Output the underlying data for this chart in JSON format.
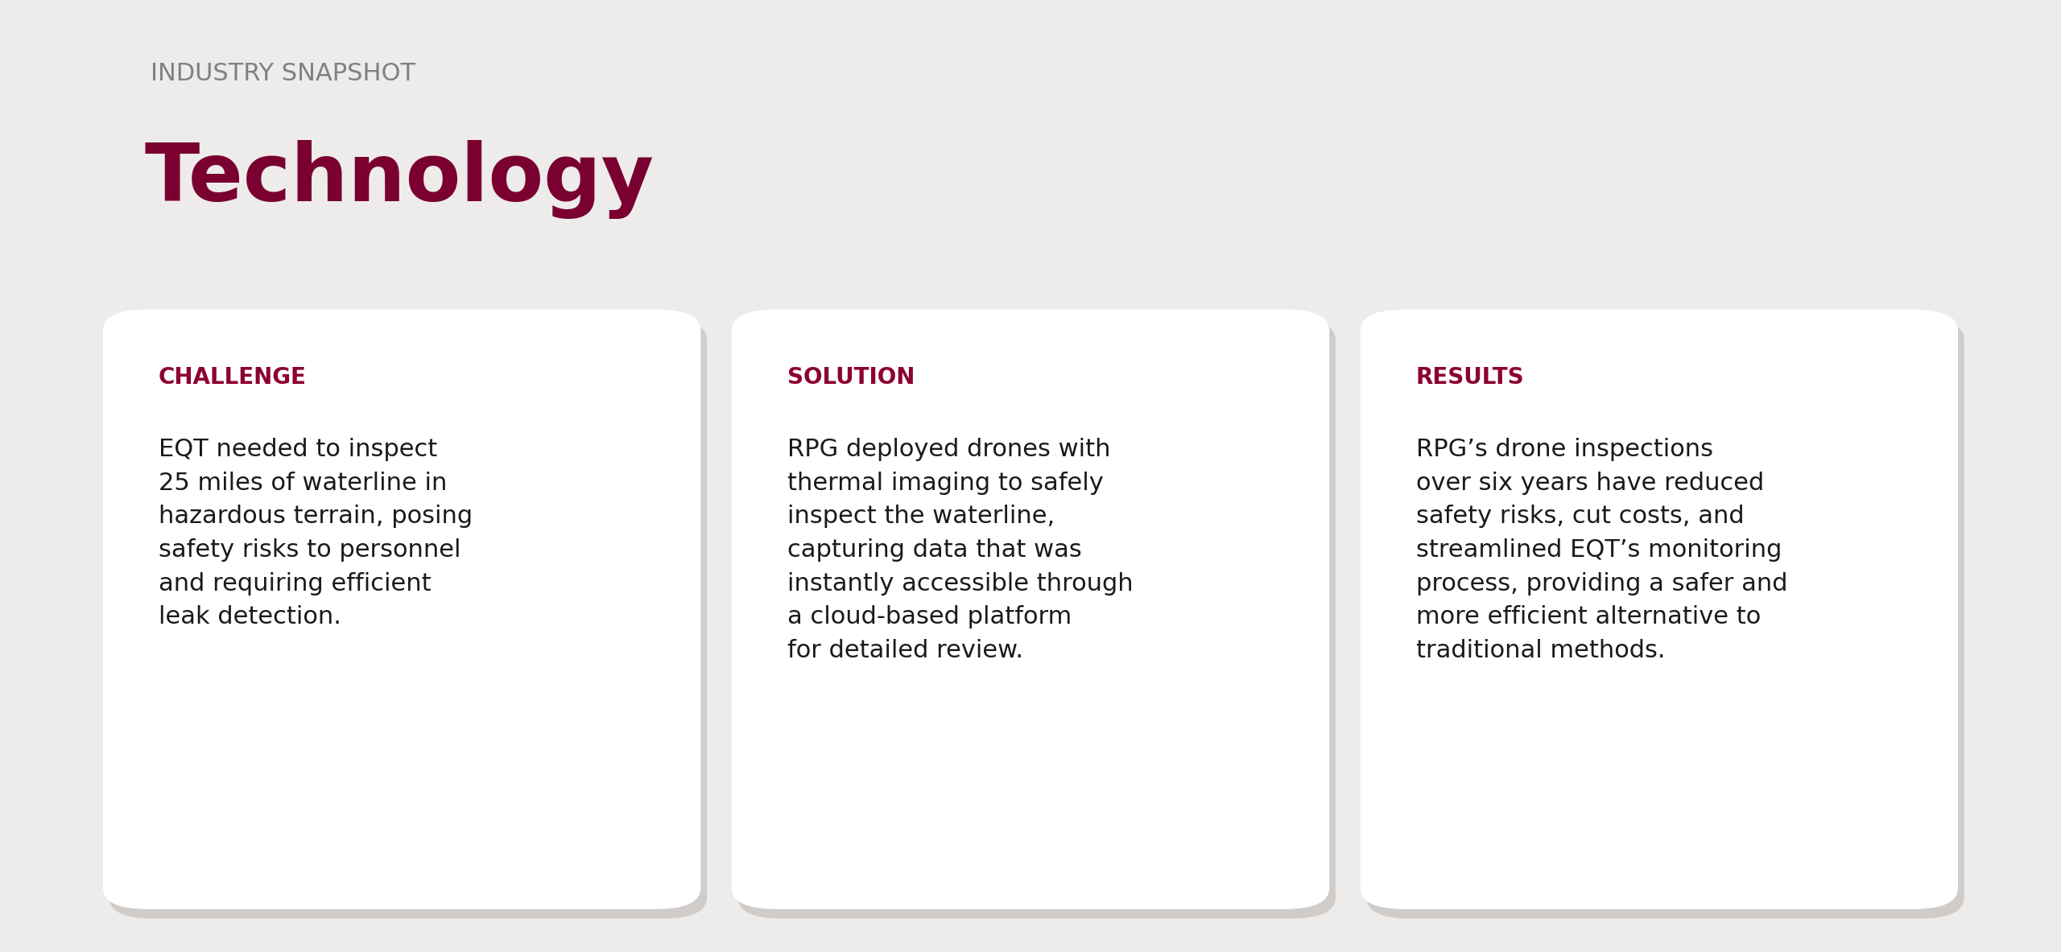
{
  "background_color": "#edecea",
  "title_label": "INDUSTRY SNAPSHOT",
  "title_label_color": "#808080",
  "title_label_fontsize": 22,
  "title_label_weight": "normal",
  "title": "Technology",
  "title_color": "#7a0030",
  "title_fontsize": 72,
  "title_weight": "bold",
  "card_bg": "#ffffff",
  "card_shadow_color": "#d0ccca",
  "sections": [
    {
      "heading": "CHALLENGE",
      "heading_color": "#8b0030",
      "heading_fontsize": 20,
      "body": "EQT needed to inspect\n25 miles of waterline in\nhazardous terrain, posing\nsafety risks to personnel\nand requiring efficient\nleak detection.",
      "body_color": "#1a1a1a",
      "body_fontsize": 22
    },
    {
      "heading": "SOLUTION",
      "heading_color": "#8b0030",
      "heading_fontsize": 20,
      "body": "RPG deployed drones with\nthermal imaging to safely\ninspect the waterline,\ncapturing data that was\ninstantly accessible through\na cloud-based platform\nfor detailed review.",
      "body_color": "#1a1a1a",
      "body_fontsize": 22
    },
    {
      "heading": "RESULTS",
      "heading_color": "#8b0030",
      "heading_fontsize": 20,
      "body": "RPG’s drone inspections\nover six years have reduced\nsafety risks, cut costs, and\nstreamlined EQT’s monitoring\nprocess, providing a safer and\nmore efficient alternative to\ntraditional methods.",
      "body_color": "#1a1a1a",
      "body_fontsize": 22
    }
  ]
}
